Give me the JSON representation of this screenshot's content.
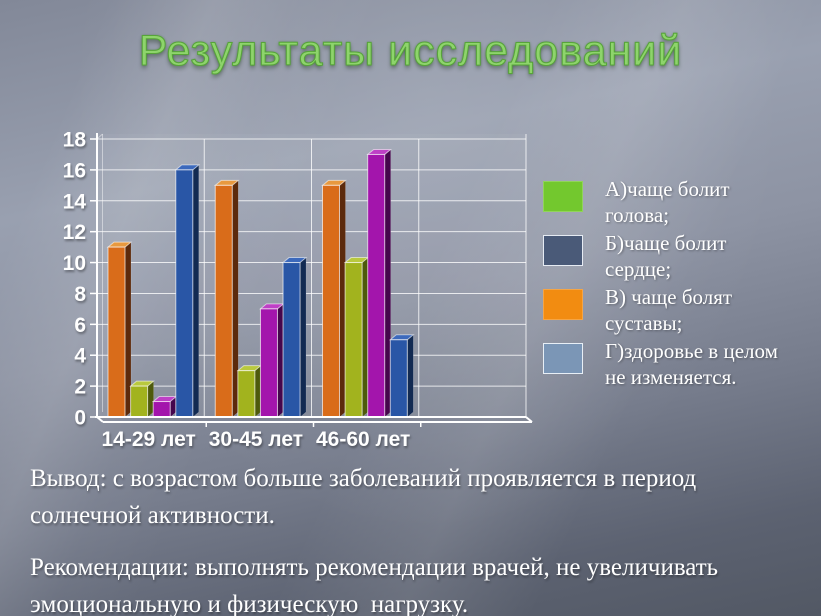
{
  "title": "Результаты исследований",
  "conclusion": {
    "p1": "Вывод: с возрастом больше заболеваний проявляется в период\nсолнечной активности.",
    "p2": "Рекомендации: выполнять рекомендации врачей, не увеличивать\nэмоциональную и физическую  нагрузку."
  },
  "colors": {
    "title_green": "#8ed46c",
    "text_white": "#ffffff",
    "gridline": "#ffffff"
  },
  "chart_data": {
    "type": "bar",
    "title": "",
    "xlabel": "",
    "ylabel": "",
    "categories": [
      "14-29 лет",
      "30-45 лет",
      "46-60 лет"
    ],
    "series": [
      {
        "name": "bar-orange",
        "color": "#d96c1a",
        "top": "#e8993f",
        "side": "#5c2a0c",
        "values": [
          11,
          15,
          15
        ]
      },
      {
        "name": "bar-green",
        "color": "#a2b31e",
        "top": "#b9c93e",
        "side": "#4e5a0c",
        "values": [
          2,
          3,
          10
        ]
      },
      {
        "name": "bar-magenta",
        "color": "#a315ac",
        "top": "#be3fc6",
        "side": "#45064c",
        "values": [
          1,
          7,
          17
        ]
      },
      {
        "name": "bar-blue",
        "color": "#2956a6",
        "top": "#3c69bc",
        "side": "#122a52",
        "values": [
          16,
          10,
          5
        ]
      }
    ],
    "ylim": [
      0,
      18
    ],
    "ystep": 2,
    "yticks": [
      "0",
      "2",
      "4",
      "6",
      "8",
      "10",
      "12",
      "14",
      "16",
      "18"
    ],
    "grid": true,
    "legend_position": "right",
    "legend": {
      "items": [
        {
          "label": "А)чаще болит\nголова;",
          "color": "#73c82e",
          "border": false
        },
        {
          "label": "Б)чаще болит\nсердце;",
          "color": "#4a5a78",
          "border": true
        },
        {
          "label": "В) чаще болят\nсуставы;",
          "color": "#f28c11",
          "border": false
        },
        {
          "label": "Г)здоровье в целом\nне изменяется.",
          "color": "#7b96b6",
          "border": true
        }
      ]
    }
  }
}
